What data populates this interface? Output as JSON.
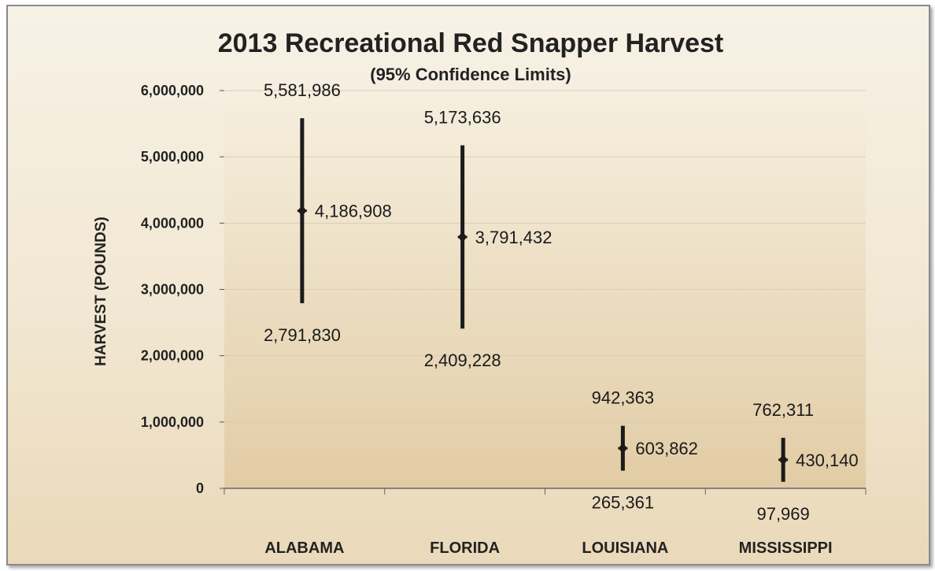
{
  "colors": {
    "plot_top": "#f6efdf",
    "plot_bottom": "#e2ccA5",
    "bars": "#1b1b1b",
    "gridlines": "#d8cdb7"
  },
  "chart_data": {
    "type": "error-bar",
    "title": "2013 Recreational Red Snapper Harvest",
    "subtitle": "(95% Confidence Limits)",
    "xlabel": "",
    "ylabel": "HARVEST (POUNDS)",
    "ylim": [
      0,
      6000000
    ],
    "yticks": [
      0,
      1000000,
      2000000,
      3000000,
      4000000,
      5000000,
      6000000
    ],
    "ytick_labels": [
      "0",
      "1,000,000",
      "2,000,000",
      "3,000,000",
      "4,000,000",
      "5,000,000",
      "6,000,000"
    ],
    "grid": true,
    "categories": [
      "ALABAMA",
      "FLORIDA",
      "LOUISIANA",
      "MISSISSIPPI"
    ],
    "points": [
      {
        "category": "ALABAMA",
        "low": 2791830,
        "mid": 4186908,
        "high": 5581986,
        "low_label": "2,791,830",
        "mid_label": "4,186,908",
        "high_label": "5,581,986"
      },
      {
        "category": "FLORIDA",
        "low": 2409228,
        "mid": 3791432,
        "high": 5173636,
        "low_label": "2,409,228",
        "mid_label": "3,791,432",
        "high_label": "5,173,636"
      },
      {
        "category": "LOUISIANA",
        "low": 265361,
        "mid": 603862,
        "high": 942363,
        "low_label": "265,361",
        "mid_label": "603,862",
        "high_label": "942,363"
      },
      {
        "category": "MISSISSIPPI",
        "low": 97969,
        "mid": 430140,
        "high": 762311,
        "low_label": "97,969",
        "mid_label": "430,140",
        "high_label": "762,311"
      }
    ]
  }
}
